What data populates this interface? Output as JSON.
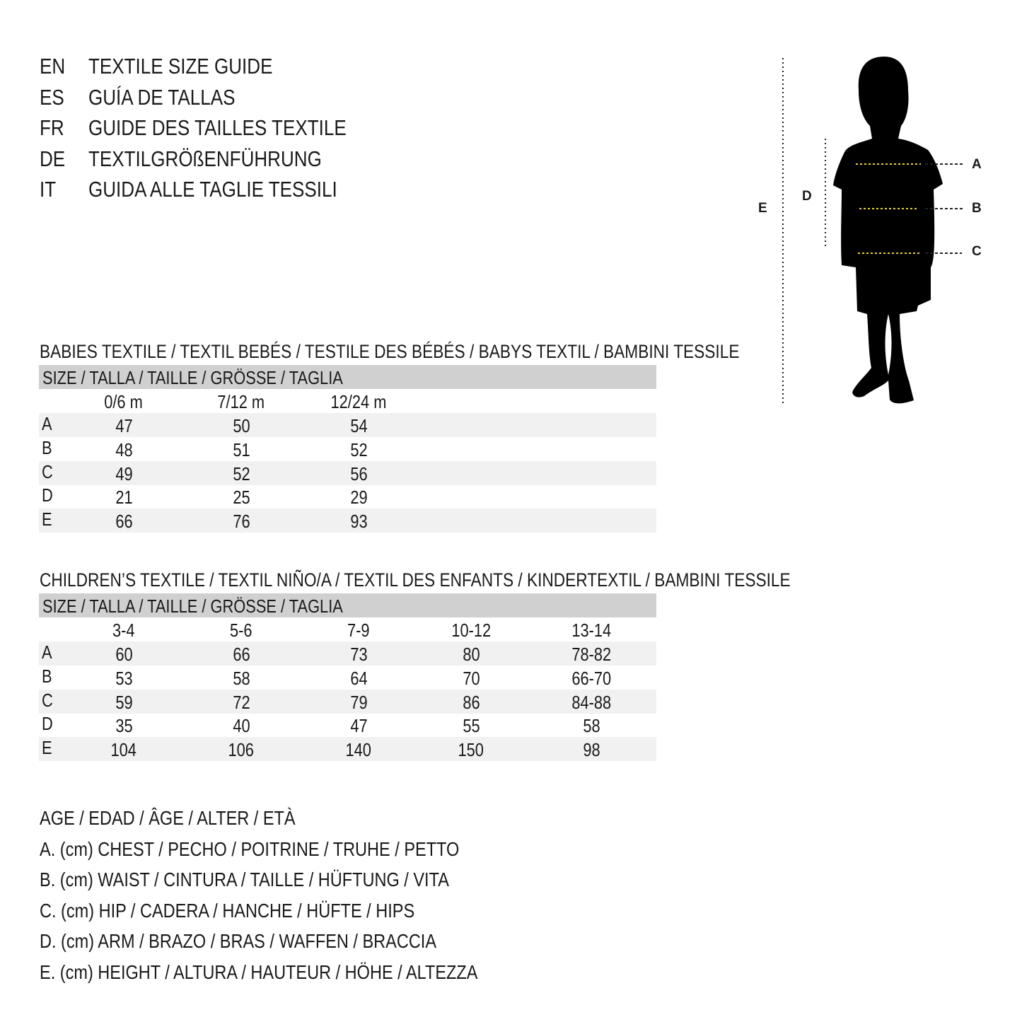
{
  "titles": [
    {
      "code": "EN",
      "text": "TEXTILE SIZE GUIDE"
    },
    {
      "code": "ES",
      "text": "GUÍA DE TALLAS"
    },
    {
      "code": "FR",
      "text": "GUIDE DES TAILLES TEXTILE"
    },
    {
      "code": "DE",
      "text": "TEXTILGRÖßENFÜHRUNG"
    },
    {
      "code": "IT",
      "text": "GUIDA ALLE TAGLIE TESSILI"
    }
  ],
  "figure": {
    "labels": {
      "A": "A",
      "B": "B",
      "C": "C",
      "D": "D",
      "E": "E"
    },
    "colors": {
      "silhouette": "#000000",
      "measure_line": "#e8d43a"
    }
  },
  "babies": {
    "title": "BABIES TEXTILE / TEXTIL BEBÉS / TESTILE DES BÉBÉS / BABYS TEXTIL / BAMBINI TESSILE",
    "header": "SIZE / TALLA / TAILLE / GRÖSSE / TAGLIA",
    "columns": [
      "0/6 m",
      "7/12 m",
      "12/24 m"
    ],
    "rows": [
      {
        "label": "A",
        "values": [
          "47",
          "50",
          "54"
        ]
      },
      {
        "label": "B",
        "values": [
          "48",
          "51",
          "52"
        ]
      },
      {
        "label": "C",
        "values": [
          "49",
          "52",
          "56"
        ]
      },
      {
        "label": "D",
        "values": [
          "21",
          "25",
          "29"
        ]
      },
      {
        "label": "E",
        "values": [
          "66",
          "76",
          "93"
        ]
      }
    ]
  },
  "children": {
    "title": "CHILDREN’S TEXTILE / TEXTIL NIÑO/A / TEXTIL DES ENFANTS / KINDERTEXTIL / BAMBINI TESSILE",
    "header": "SIZE / TALLA / TAILLE / GRÖSSE / TAGLIA",
    "columns": [
      "3-4",
      "5-6",
      "7-9",
      "10-12",
      "13-14"
    ],
    "rows": [
      {
        "label": "A",
        "values": [
          "60",
          "66",
          "73",
          "80",
          "78-82"
        ]
      },
      {
        "label": "B",
        "values": [
          "53",
          "58",
          "64",
          "70",
          "66-70"
        ]
      },
      {
        "label": "C",
        "values": [
          "59",
          "72",
          "79",
          "86",
          "84-88"
        ]
      },
      {
        "label": "D",
        "values": [
          "35",
          "40",
          "47",
          "55",
          "58"
        ]
      },
      {
        "label": "E",
        "values": [
          "104",
          "106",
          "140",
          "150",
          "98"
        ]
      }
    ]
  },
  "legend": [
    "AGE / EDAD / ÂGE / ALTER / ETÀ",
    "A. (cm) CHEST / PECHO / POITRINE / TRUHE / PETTO",
    "B. (cm) WAIST / CINTURA / TAILLE / HÜFTUNG / VITA",
    "C. (cm) HIP / CADERA / HANCHE / HÜFTE / HIPS",
    "D. (cm) ARM / BRAZO / BRAS / WAFFEN / BRACCIA",
    "E. (cm) HEIGHT / ALTURA / HAUTEUR / HÖHE / ALTEZZA"
  ]
}
